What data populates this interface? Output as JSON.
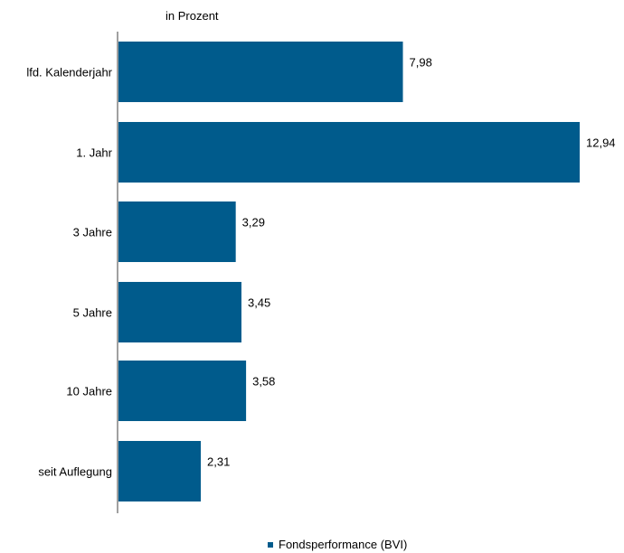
{
  "chart_data": {
    "type": "bar",
    "orientation": "horizontal",
    "title": "",
    "unit_label": "in Prozent",
    "categories": [
      "lfd. Kalenderjahr",
      "1. Jahr",
      "3 Jahre",
      "5 Jahre",
      "10 Jahre",
      "seit Auflegung"
    ],
    "series": [
      {
        "name": "Fondsperformance (BVI)",
        "values": [
          7.98,
          12.94,
          3.29,
          3.45,
          3.58,
          2.31
        ],
        "labels": [
          "7,98",
          "12,94",
          "3,29",
          "3,45",
          "3,58",
          "2,31"
        ],
        "color": "#005b8c"
      }
    ],
    "xlim": [
      0,
      12.94
    ],
    "grid": false,
    "legend_position": "bottom"
  },
  "colors": {
    "bar": "#005b8c",
    "axis": "#808080",
    "text": "#000000"
  }
}
